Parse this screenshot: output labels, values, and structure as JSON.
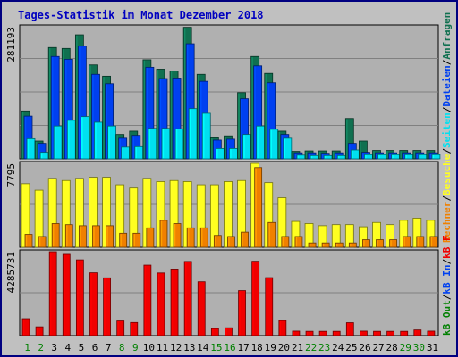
{
  "chart_data": {
    "type": "bar",
    "title": "Tages-Statistik im Monat Dezember 2018",
    "colors": {
      "background": "#C0C0C0",
      "panel": "#B0B0B0",
      "frame": "#000080",
      "title": "#0000C0",
      "hits": "#107050",
      "files": "#0040F0",
      "pages": "#00E0F0",
      "visits": "#FFFF20",
      "sites": "#F08000",
      "kbytes": "#F00000",
      "weekday": "#000000",
      "weekend": "#008000"
    },
    "days": [
      "1",
      "2",
      "3",
      "4",
      "5",
      "6",
      "7",
      "8",
      "9",
      "10",
      "11",
      "12",
      "13",
      "14",
      "15",
      "16",
      "17",
      "18",
      "19",
      "20",
      "21",
      "22",
      "23",
      "24",
      "25",
      "26",
      "27",
      "28",
      "29",
      "30",
      "31"
    ],
    "weekend_days": [
      "1",
      "2",
      "8",
      "9",
      "15",
      "16",
      "22",
      "23",
      "29",
      "30"
    ],
    "panels": [
      {
        "max_label": "281193",
        "ymax": 281193,
        "series": [
          {
            "name": "Anfragen",
            "color": "#107050",
            "values": [
              102000,
              38000,
              237000,
              235000,
              264000,
              200000,
              176000,
              52000,
              59000,
              211000,
              191000,
              187000,
              280000,
              180000,
              45000,
              49000,
              141000,
              218000,
              182000,
              59000,
              16000,
              17000,
              17000,
              17000,
              86000,
              38000,
              18000,
              18000,
              18000,
              18000,
              18000
            ]
          },
          {
            "name": "Dateien",
            "color": "#0040F0",
            "values": [
              91000,
              33000,
              218000,
              212000,
              240000,
              180000,
              160000,
              44000,
              50000,
              195000,
              171000,
              172000,
              245000,
              165000,
              40000,
              42000,
              128000,
              198000,
              162000,
              52000,
              13000,
              13000,
              12000,
              13000,
              33000,
              14000,
              13000,
              13000,
              13000,
              13000,
              13000
            ]
          },
          {
            "name": "Seiten",
            "color": "#00E0F0",
            "values": [
              43000,
              14000,
              70000,
              82000,
              90000,
              78000,
              70000,
              25000,
              26000,
              65000,
              65000,
              64000,
              107000,
              97000,
              22000,
              22000,
              52000,
              70000,
              63000,
              44000,
              8000,
              7000,
              7000,
              7000,
              19000,
              9000,
              9000,
              9000,
              9000,
              9000,
              9000
            ]
          }
        ]
      },
      {
        "max_label": "7795",
        "ymax": 7795,
        "series": [
          {
            "name": "Besuche",
            "color": "#FFFF20",
            "values": [
              5900,
              5300,
              6400,
              6200,
              6400,
              6500,
              6500,
              5800,
              5500,
              6400,
              6100,
              6200,
              6100,
              5800,
              5800,
              6100,
              6200,
              7795,
              6000,
              4600,
              2400,
              2200,
              2000,
              2100,
              2100,
              1900,
              2300,
              2100,
              2500,
              2700,
              2500
            ]
          },
          {
            "name": "Rechner",
            "color": "#F08000",
            "values": [
              1200,
              1000,
              2200,
              2100,
              2000,
              2000,
              2000,
              1300,
              1300,
              1800,
              2500,
              2200,
              1800,
              1800,
              1100,
              1000,
              1400,
              7400,
              2300,
              1000,
              1000,
              400,
              400,
              400,
              400,
              700,
              700,
              700,
              1000,
              1000,
              1000
            ]
          }
        ]
      },
      {
        "max_label": "4285731",
        "ymax": 4285731,
        "series": [
          {
            "name": "kB F",
            "color": "#F00000",
            "values": [
              865000,
              450000,
              4285731,
              4150000,
              3870000,
              3210000,
              2950000,
              750000,
              670000,
              3600000,
              3200000,
              3400000,
              3790000,
              2750000,
              360000,
              400000,
              2300000,
              3800000,
              2960000,
              770000,
              230000,
              220000,
              220000,
              220000,
              660000,
              230000,
              220000,
              220000,
              220000,
              290000,
              230000
            ]
          }
        ]
      }
    ],
    "legend_right": {
      "top": [
        {
          "text": "Anfragen",
          "color": "#107050"
        },
        {
          "text": "Dateien",
          "color": "#0040F0"
        },
        {
          "text": "Seiten",
          "color": "#00E0F0"
        },
        {
          "text": "Besuche",
          "color": "#FFFF20"
        },
        {
          "text": "Rechner",
          "color": "#F08000"
        }
      ],
      "bottom": [
        {
          "text": "kB Out",
          "color": "#008000"
        },
        {
          "text": "kB In",
          "color": "#0040F0"
        },
        {
          "text": "kB F",
          "color": "#F00000"
        }
      ],
      "separator": "/"
    }
  }
}
